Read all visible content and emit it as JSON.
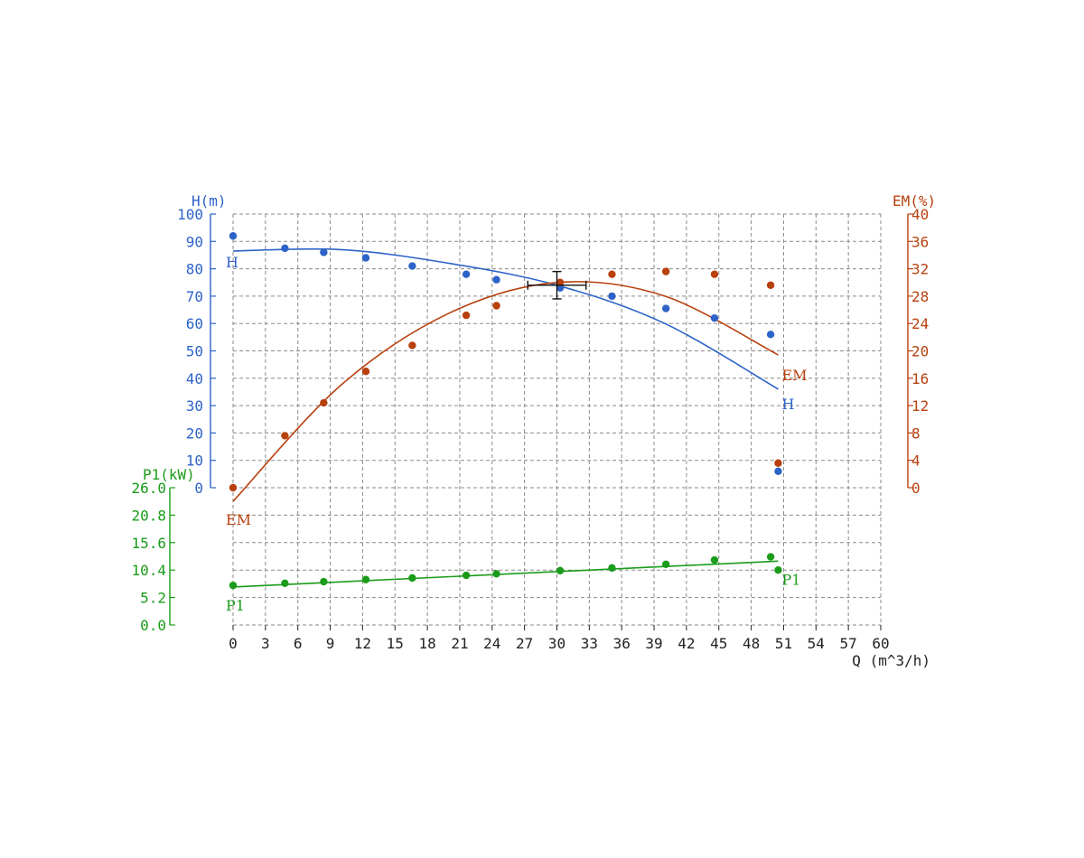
{
  "chart_data": {
    "type": "line",
    "x_axis": {
      "label": "Q (m^3/h)",
      "ticks": [
        "0",
        "3",
        "6",
        "9",
        "12",
        "15",
        "18",
        "21",
        "24",
        "27",
        "30",
        "33",
        "36",
        "39",
        "42",
        "45",
        "48",
        "51",
        "54",
        "57",
        "60"
      ],
      "range": [
        0,
        60
      ]
    },
    "y_axes": {
      "H": {
        "label": "H(m)",
        "ticks": [
          "100",
          "90",
          "80",
          "70",
          "60",
          "50",
          "40",
          "30",
          "20",
          "10",
          "0"
        ],
        "range": [
          0,
          100
        ],
        "color": "#2d63c8"
      },
      "EM": {
        "label": "EM(%)",
        "ticks": [
          "40",
          "36",
          "32",
          "28",
          "24",
          "20",
          "16",
          "12",
          "8",
          "4",
          "0"
        ],
        "range": [
          0,
          40
        ],
        "color": "#b8400d"
      },
      "P1": {
        "label": "P1(kW)",
        "ticks": [
          "26.0",
          "20.8",
          "15.6",
          "10.4",
          "5.2",
          "0.0"
        ],
        "range": [
          0,
          26
        ],
        "color": "#1a9c1a"
      }
    },
    "series": [
      {
        "name": "H",
        "axis": "H",
        "color": "#2d63c8",
        "points": [
          {
            "x": 0,
            "y": 92
          },
          {
            "x": 4.8,
            "y": 87.5
          },
          {
            "x": 8.4,
            "y": 86
          },
          {
            "x": 12.3,
            "y": 84
          },
          {
            "x": 16.6,
            "y": 81
          },
          {
            "x": 21.6,
            "y": 78
          },
          {
            "x": 24.4,
            "y": 76
          },
          {
            "x": 30.3,
            "y": 73
          },
          {
            "x": 35.1,
            "y": 70
          },
          {
            "x": 40.1,
            "y": 65.5
          },
          {
            "x": 44.6,
            "y": 62
          },
          {
            "x": 49.8,
            "y": 56
          },
          {
            "x": 50.5,
            "y": 6
          }
        ],
        "fit": [
          {
            "x": 0,
            "y": 86.5
          },
          {
            "x": 10,
            "y": 87
          },
          {
            "x": 20,
            "y": 82
          },
          {
            "x": 30,
            "y": 74
          },
          {
            "x": 40,
            "y": 60
          },
          {
            "x": 50.5,
            "y": 36
          }
        ]
      },
      {
        "name": "EM",
        "axis": "EM",
        "color": "#b8400d",
        "points": [
          {
            "x": 0,
            "y": 0
          },
          {
            "x": 4.8,
            "y": 7.6
          },
          {
            "x": 8.4,
            "y": 12.4
          },
          {
            "x": 12.3,
            "y": 17
          },
          {
            "x": 16.6,
            "y": 20.8
          },
          {
            "x": 21.6,
            "y": 25.2
          },
          {
            "x": 24.4,
            "y": 26.6
          },
          {
            "x": 30.3,
            "y": 30
          },
          {
            "x": 35.1,
            "y": 31.2
          },
          {
            "x": 40.1,
            "y": 31.6
          },
          {
            "x": 44.6,
            "y": 31.2
          },
          {
            "x": 49.8,
            "y": 29.6
          },
          {
            "x": 50.5,
            "y": 3.6
          }
        ],
        "fit": [
          {
            "x": 0,
            "y": -2
          },
          {
            "x": 10,
            "y": 15
          },
          {
            "x": 20,
            "y": 25.5
          },
          {
            "x": 30,
            "y": 30
          },
          {
            "x": 40,
            "y": 28
          },
          {
            "x": 50.5,
            "y": 19.4
          }
        ]
      },
      {
        "name": "P1",
        "axis": "P1",
        "color": "#1a9c1a",
        "points": [
          {
            "x": 0,
            "y": 7.5
          },
          {
            "x": 4.8,
            "y": 7.9
          },
          {
            "x": 8.4,
            "y": 8.2
          },
          {
            "x": 12.3,
            "y": 8.6
          },
          {
            "x": 16.6,
            "y": 8.9
          },
          {
            "x": 21.6,
            "y": 9.4
          },
          {
            "x": 24.4,
            "y": 9.7
          },
          {
            "x": 30.3,
            "y": 10.3
          },
          {
            "x": 35.1,
            "y": 10.8
          },
          {
            "x": 40.1,
            "y": 11.5
          },
          {
            "x": 44.6,
            "y": 12.3
          },
          {
            "x": 49.8,
            "y": 12.9
          },
          {
            "x": 50.5,
            "y": 10.4
          }
        ],
        "fit": [
          {
            "x": 0,
            "y": 7.2
          },
          {
            "x": 50.5,
            "y": 12.1
          }
        ]
      }
    ],
    "operating_point": {
      "x": 30,
      "y": 74,
      "axis": "H",
      "x_half_width": 2.7,
      "y_half_height": 5
    },
    "grid": true
  }
}
